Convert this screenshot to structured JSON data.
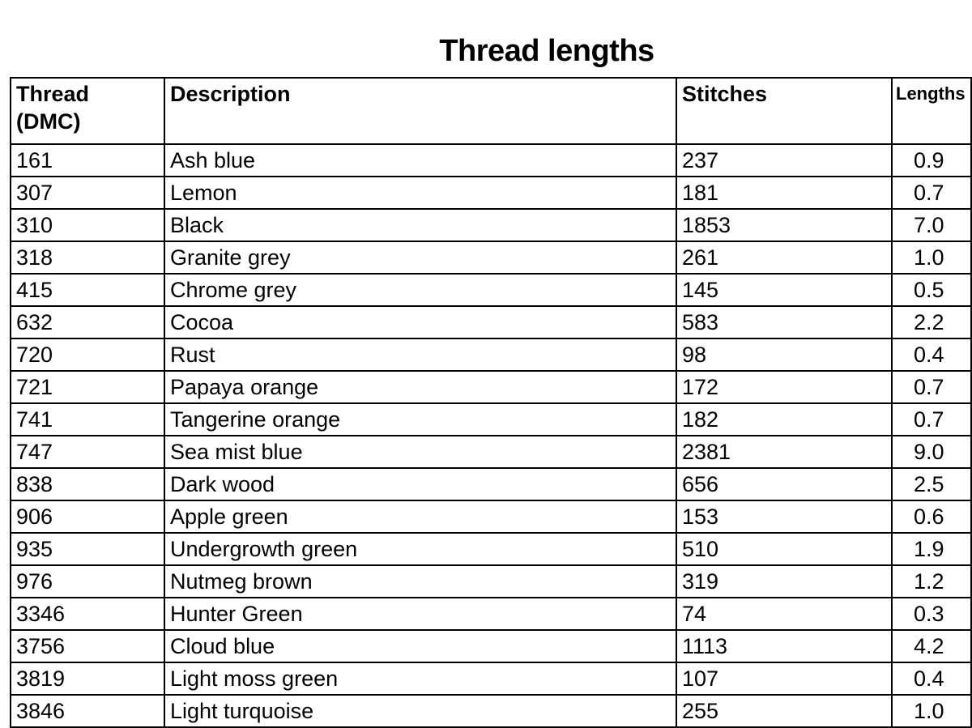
{
  "title": "Thread lengths",
  "table": {
    "headers": [
      "Thread (DMC)",
      "Description",
      "Stitches",
      "Lengths"
    ],
    "rows": [
      [
        "161",
        "Ash blue",
        "237",
        "0.9"
      ],
      [
        "307",
        "Lemon",
        "181",
        "0.7"
      ],
      [
        "310",
        "Black",
        "1853",
        "7.0"
      ],
      [
        "318",
        "Granite grey",
        "261",
        "1.0"
      ],
      [
        "415",
        "Chrome grey",
        "145",
        "0.5"
      ],
      [
        "632",
        "Cocoa",
        "583",
        "2.2"
      ],
      [
        "720",
        "Rust",
        "98",
        "0.4"
      ],
      [
        "721",
        "Papaya orange",
        "172",
        "0.7"
      ],
      [
        "741",
        "Tangerine orange",
        "182",
        "0.7"
      ],
      [
        "747",
        "Sea mist blue",
        "2381",
        "9.0"
      ],
      [
        "838",
        "Dark wood",
        "656",
        "2.5"
      ],
      [
        "906",
        "Apple green",
        "153",
        "0.6"
      ],
      [
        "935",
        "Undergrowth green",
        "510",
        "1.9"
      ],
      [
        "976",
        "Nutmeg brown",
        "319",
        "1.2"
      ],
      [
        "3346",
        "Hunter Green",
        "74",
        "0.3"
      ],
      [
        "3756",
        "Cloud blue",
        "1113",
        "4.2"
      ],
      [
        "3819",
        "Light moss green",
        "107",
        "0.4"
      ],
      [
        "3846",
        "Light turquoise",
        "255",
        "1.0"
      ]
    ]
  }
}
